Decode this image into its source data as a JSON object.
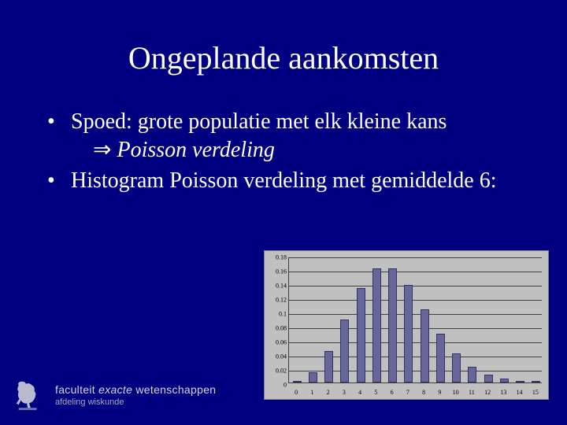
{
  "slide": {
    "title": "Ongeplande aankomsten",
    "bullets": [
      {
        "text": "Spoed: grote populatie met elk kleine kans",
        "sub": {
          "arrow": "⇒",
          "italic": "Poisson verdeling"
        }
      },
      {
        "text": "Histogram Poisson verdeling met gemiddelde 6:"
      }
    ]
  },
  "chart": {
    "type": "bar",
    "background_color": "#c0c0c0",
    "bar_color": "#666699",
    "bar_border_color": "#333366",
    "grid_color": "#404040",
    "axis_color": "#404040",
    "tick_fontsize": 8,
    "tick_color": "#000000",
    "ylim": [
      0,
      0.18
    ],
    "ytick_step": 0.02,
    "yticks": [
      "0",
      "0.02",
      "0.04",
      "0.06",
      "0.08",
      "0.1",
      "0.12",
      "0.14",
      "0.16",
      "0.18"
    ],
    "x_categories": [
      "0",
      "1",
      "2",
      "3",
      "4",
      "5",
      "6",
      "7",
      "8",
      "9",
      "10",
      "11",
      "12",
      "13",
      "14",
      "15"
    ],
    "values": [
      0.0025,
      0.0149,
      0.0446,
      0.0892,
      0.1339,
      0.1606,
      0.1606,
      0.1377,
      0.1033,
      0.0688,
      0.0413,
      0.0225,
      0.0113,
      0.0052,
      0.0022,
      0.0009
    ],
    "bar_width_ratio": 0.55
  },
  "footer": {
    "faculty_light": "faculteit ",
    "faculty_em": "exacte",
    "faculty_rest": " wetenschappen",
    "dept": "afdeling wiskunde",
    "logo_color": "#b8bad0"
  },
  "colors": {
    "slide_bg": "#000080",
    "text": "#ffffff"
  }
}
